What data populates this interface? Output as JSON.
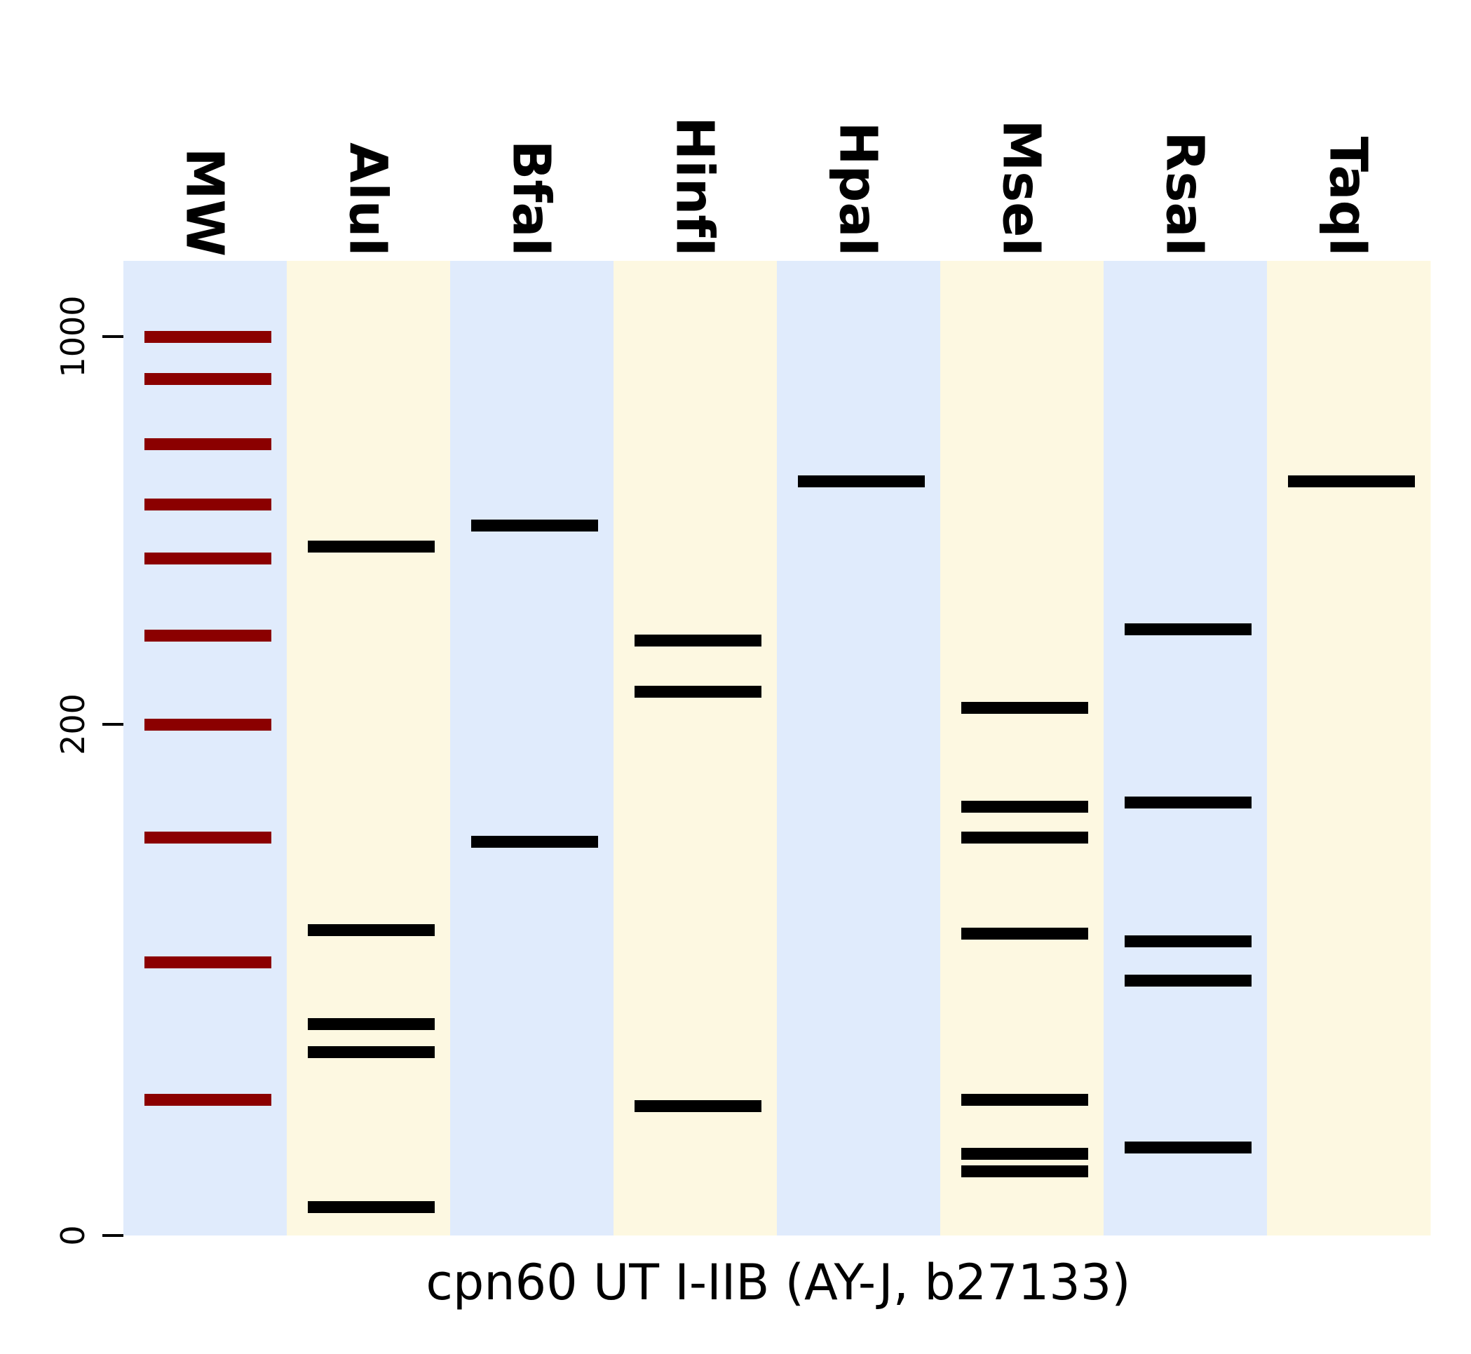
{
  "chart_data": {
    "type": "gel",
    "xlabel": "cpn60 UT I-IIB (AY-J, b27133)",
    "ylabel": "",
    "yticks": [
      {
        "value": 0,
        "label": "0"
      },
      {
        "value": 200,
        "label": "200"
      },
      {
        "value": 1000,
        "label": "1000"
      }
    ],
    "ylim": [
      0,
      1300
    ],
    "colors": {
      "lane_blue": "#e0ebfc",
      "lane_yellow": "#fdf8e1",
      "marker_band": "#8b0000",
      "sample_band": "#000000"
    },
    "lanes": [
      {
        "label": "MW",
        "color": "lane_blue",
        "band_color": "marker_band",
        "bands": [
          1000,
          900,
          800,
          700,
          600,
          500,
          400,
          300,
          200,
          100
        ]
      },
      {
        "label": "AluI",
        "color": "lane_yellow",
        "band_color": "sample_band",
        "bands": [
          578,
          214,
          138,
          124,
          7
        ]
      },
      {
        "label": "BfaI",
        "color": "lane_blue",
        "band_color": "sample_band",
        "bands": [
          610,
          300
        ]
      },
      {
        "label": "HinfI",
        "color": "lane_yellow",
        "band_color": "sample_band",
        "bands": [
          425,
          364,
          94
        ]
      },
      {
        "label": "HpaI",
        "color": "lane_blue",
        "band_color": "sample_band",
        "bands": [
          682
        ]
      },
      {
        "label": "MseI",
        "color": "lane_yellow",
        "band_color": "sample_band",
        "bands": [
          218,
          280,
          266,
          209,
          100,
          57,
          50
        ]
      },
      {
        "label": "RsaI",
        "color": "lane_blue",
        "band_color": "sample_band",
        "bands": [
          438,
          285,
          205,
          184,
          42
        ]
      },
      {
        "label": "TaqI",
        "color": "lane_yellow",
        "band_color": "sample_band",
        "bands": [
          682
        ]
      }
    ]
  }
}
